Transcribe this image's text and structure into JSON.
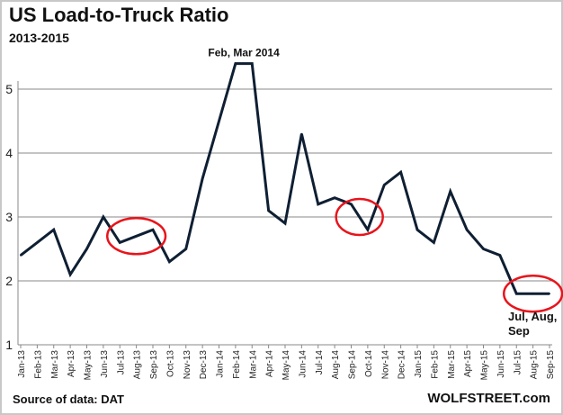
{
  "chart_data": {
    "type": "line",
    "title": "US Load-to-Truck Ratio",
    "subtitle": "2013-2015",
    "source": "Source of data: DAT",
    "brand": "WOLFSTREET.com",
    "xlabel": "",
    "ylabel": "",
    "ylim": [
      1,
      5.5
    ],
    "yticks": [
      1,
      2,
      3,
      4,
      5
    ],
    "grid": true,
    "categories": [
      "Jan-13",
      "Feb-13",
      "Mar-13",
      "Apr-13",
      "May-13",
      "Jun-13",
      "Jul-13",
      "Aug-13",
      "Sep-13",
      "Oct-13",
      "Nov-13",
      "Dec-13",
      "Jan-14",
      "Feb-14",
      "Mar-14",
      "Apr-14",
      "May-14",
      "Jun-14",
      "Jul-14",
      "Aug-14",
      "Sep-14",
      "Oct-14",
      "Nov-14",
      "Dec-14",
      "Jan-15",
      "Feb-15",
      "Mar-15",
      "Apr-15",
      "May-15",
      "Jun-15",
      "Jul-15",
      "Aug-15",
      "Sep-15"
    ],
    "series": [
      {
        "name": "Load-to-Truck Ratio",
        "color": "#0f1f33",
        "values": [
          2.4,
          2.6,
          2.8,
          2.1,
          2.5,
          3.0,
          2.6,
          2.7,
          2.8,
          2.3,
          2.5,
          3.6,
          4.5,
          5.4,
          5.4,
          3.1,
          2.9,
          4.3,
          3.2,
          3.3,
          3.2,
          2.8,
          3.5,
          3.7,
          2.8,
          2.6,
          3.4,
          2.8,
          2.5,
          2.4,
          1.8,
          1.8,
          1.8
        ]
      }
    ],
    "annotations": [
      {
        "text": "Feb, Mar 2014"
      },
      {
        "text": "Jul, Aug,",
        "text2": "Sep"
      }
    ],
    "highlights": [
      {
        "from": 6,
        "to": 8
      },
      {
        "from": 20,
        "to": 21
      },
      {
        "from": 30,
        "to": 32
      }
    ],
    "highlight_color": "#e8141c"
  }
}
